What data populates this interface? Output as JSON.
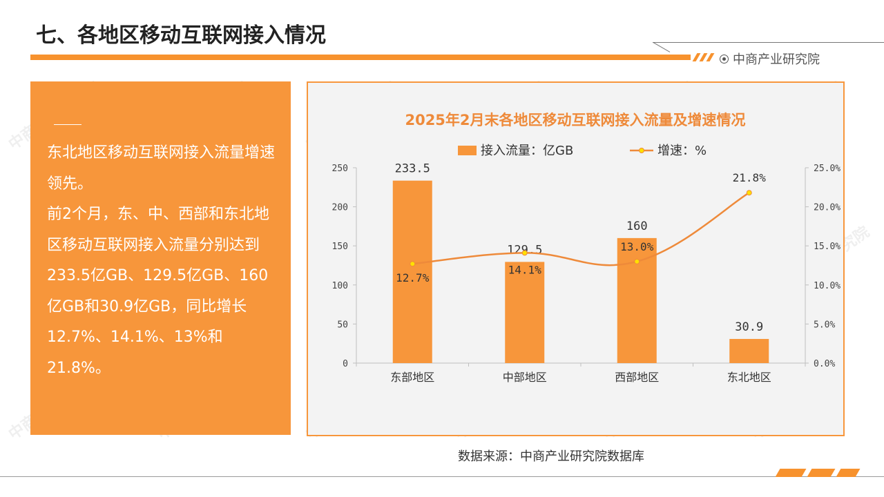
{
  "page": {
    "title": "七、各地区移动互联网接入情况",
    "brand": "中商产业研究院",
    "source": "数据来源：中商产业研究院数据库",
    "watermark_text": "中商产业研究院"
  },
  "summary": {
    "paragraphs": [
      "东北地区移动互联网接入流量增速领先。",
      "前2个月，东、中、西部和东北地区移动互联网接入流量分别达到233.5亿GB、129.5亿GB、160亿GB和30.9亿GB，同比增长12.7%、14.1%、13%和21.8%。"
    ]
  },
  "colors": {
    "accent": "#f7922e",
    "bar": "#f7963b",
    "line": "#ee8a3a",
    "marker": "#ffe000"
  },
  "chart_data": {
    "type": "bar",
    "title": "2025年2月末各地区移动互联网接入流量及增速情况",
    "categories": [
      "东部地区",
      "中部地区",
      "西部地区",
      "东北地区"
    ],
    "series": [
      {
        "name": "接入流量：亿GB",
        "type": "bar",
        "axis": "left",
        "values": [
          233.5,
          129.5,
          160,
          30.9
        ],
        "labels": [
          "233.5",
          "129.5",
          "160",
          "30.9"
        ]
      },
      {
        "name": "增速：%",
        "type": "line",
        "axis": "right",
        "values": [
          12.7,
          14.1,
          13.0,
          21.8
        ],
        "labels": [
          "12.7%",
          "14.1%",
          "13.0%",
          "21.8%"
        ]
      }
    ],
    "ylim": [
      0,
      250
    ],
    "yticks": [
      0,
      50,
      100,
      150,
      200,
      250
    ],
    "y2lim": [
      0,
      25
    ],
    "y2ticks": [
      "0.0%",
      "5.0%",
      "10.0%",
      "15.0%",
      "20.0%",
      "25.0%"
    ],
    "legend": "top",
    "grid": false
  }
}
